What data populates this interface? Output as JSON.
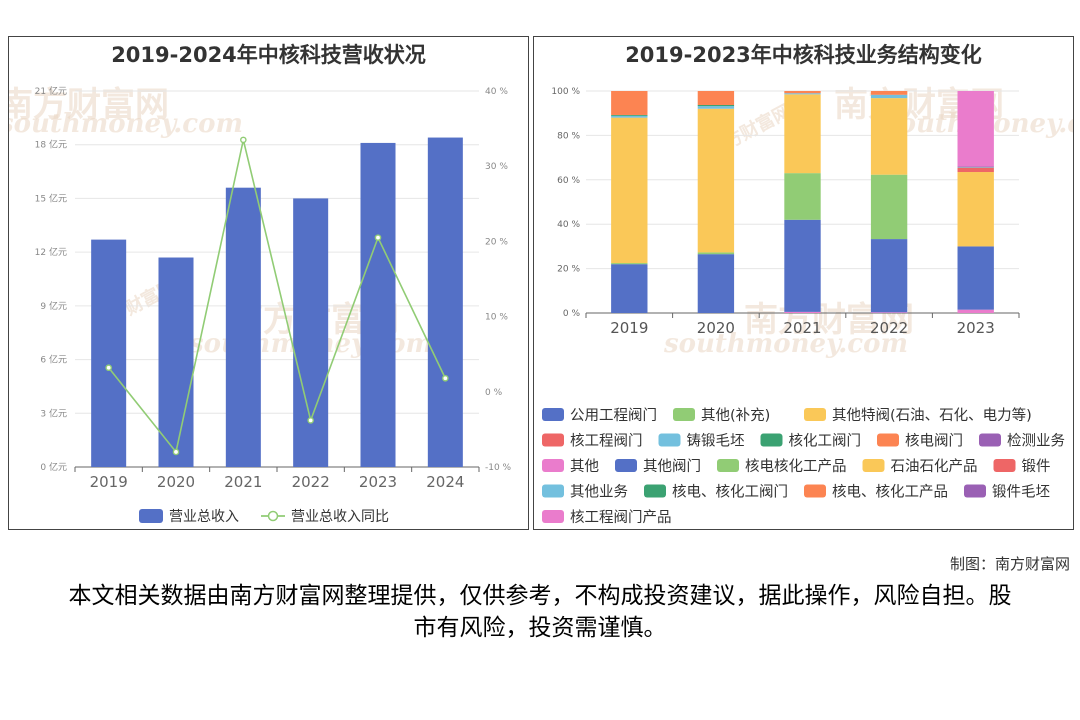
{
  "left_chart": {
    "title": "2019-2024年中核科技营收状况",
    "legend": [
      "营业总收入",
      "营业总收入同比"
    ],
    "colors": {
      "bar": "#5470c6",
      "line": "#91cc75"
    }
  },
  "right_chart": {
    "title": "2019-2023年中核科技业务结构变化"
  },
  "watermark": {
    "cn": "南方财富网",
    "en": "southmoney.com"
  },
  "credit": "制图：南方财富网",
  "disclaimer": "本文相关数据由南方财富网整理提供，仅供参考，不构成投资建议，据此操作，风险自担。股市有风险，投资需谨慎。",
  "chart_data": [
    {
      "type": "bar",
      "title": "2019-2024年中核科技营收状况",
      "categories": [
        "2019",
        "2020",
        "2021",
        "2022",
        "2023",
        "2024"
      ],
      "y_ticks": [
        "0 亿元",
        "3 亿元",
        "6 亿元",
        "9 亿元",
        "12 亿元",
        "15 亿元",
        "18 亿元",
        "21 亿元"
      ],
      "y2_ticks": [
        "-10 %",
        "0 %",
        "10 %",
        "20 %",
        "30 %",
        "40 %"
      ],
      "ylim": [
        0,
        21
      ],
      "y2lim": [
        -10,
        40
      ],
      "series": [
        {
          "name": "营业总收入",
          "type": "bar",
          "values": [
            12.7,
            11.7,
            15.6,
            15.0,
            18.1,
            18.4
          ]
        },
        {
          "name": "营业总收入同比",
          "type": "line",
          "axis": "right",
          "values": [
            3.2,
            -8.0,
            33.5,
            -3.8,
            20.5,
            1.8
          ]
        }
      ],
      "legend_position": "bottom"
    },
    {
      "type": "bar",
      "stacked": true,
      "title": "2019-2023年中核科技业务结构变化",
      "categories": [
        "2019",
        "2020",
        "2021",
        "2022",
        "2023"
      ],
      "y_ticks": [
        "0 %",
        "20 %",
        "40 %",
        "60 %",
        "80 %",
        "100 %"
      ],
      "ylim": [
        0,
        100
      ],
      "legend_position": "bottom",
      "series": [
        {
          "name": "公用工程阀门",
          "color": "#5470c6",
          "values": [
            22,
            26.5,
            0,
            0,
            0
          ]
        },
        {
          "name": "其他(补充)",
          "color": "#91cc75",
          "values": [
            0.5,
            0.8,
            0,
            0,
            0
          ]
        },
        {
          "name": "其他特阀(石油、石化、电力等)",
          "color": "#fac858",
          "values": [
            65.5,
            64.7,
            0,
            0,
            0
          ]
        },
        {
          "name": "核工程阀门",
          "color": "#ee6666",
          "values": [
            0,
            0,
            0,
            0,
            0
          ]
        },
        {
          "name": "铸锻毛坯",
          "color": "#73c0de",
          "values": [
            0.8,
            1.2,
            0,
            0,
            0
          ]
        },
        {
          "name": "核化工阀门",
          "color": "#3ba272",
          "values": [
            0.4,
            0.5,
            0,
            0,
            0
          ]
        },
        {
          "name": "核电阀门",
          "color": "#fc8452",
          "values": [
            10.8,
            6.3,
            0,
            0,
            0
          ]
        },
        {
          "name": "检测业务",
          "color": "#9a60b4",
          "values": [
            0,
            0,
            0,
            0,
            0
          ]
        },
        {
          "name": "其他",
          "color": "#ea7ccc",
          "values": [
            0,
            0,
            0.5,
            0.3,
            1.5
          ]
        },
        {
          "name": "其他阀门",
          "color": "#5470c6",
          "values": [
            0,
            0,
            41.5,
            33,
            28.5
          ]
        },
        {
          "name": "核电核化工产品",
          "color": "#91cc75",
          "values": [
            0,
            0,
            21,
            29,
            0
          ]
        },
        {
          "name": "石油石化产品",
          "color": "#fac858",
          "values": [
            0,
            0,
            35.5,
            34.5,
            33.5
          ]
        },
        {
          "name": "锻件",
          "color": "#ee6666",
          "values": [
            0,
            0,
            0,
            0,
            2
          ]
        },
        {
          "name": "其他业务",
          "color": "#73c0de",
          "values": [
            0,
            0,
            0.5,
            1.5,
            0.3
          ]
        },
        {
          "name": "核电、核化工阀门",
          "color": "#3ba272",
          "values": [
            0,
            0,
            0,
            0,
            0
          ]
        },
        {
          "name": "核电、核化工产品",
          "color": "#fc8452",
          "values": [
            0,
            0,
            1,
            1.7,
            0
          ]
        },
        {
          "name": "锻件毛坯",
          "color": "#9a60b4",
          "values": [
            0,
            0,
            0,
            0,
            0.2
          ]
        },
        {
          "name": "核工程阀门产品",
          "color": "#ea7ccc",
          "values": [
            0,
            0,
            0,
            0,
            34
          ]
        }
      ]
    }
  ]
}
